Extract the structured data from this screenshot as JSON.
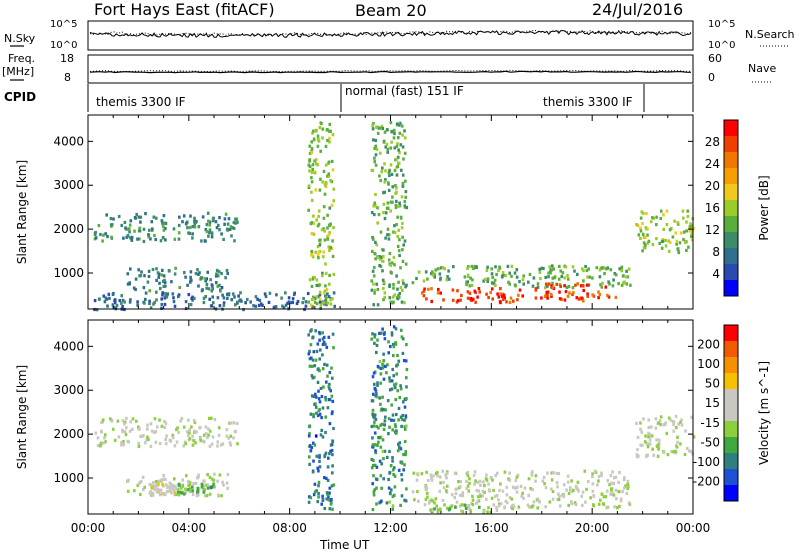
{
  "header": {
    "station": "Fort Hays East (fitACF)",
    "beam": "Beam 20",
    "date": "24/Jul/2016"
  },
  "strip_labels": {
    "nsky": "N.Sky",
    "nsky_ticks": [
      "10^5",
      "10^0"
    ],
    "nsearch": "N.Search",
    "nsearch_ticks": [
      "10^5",
      "10^0"
    ],
    "freq": "Freq.",
    "freq_unit": "[MHz]",
    "freq_ticks": [
      "18",
      "8"
    ],
    "nave": "Nave",
    "nave_ticks": [
      "60",
      "0"
    ],
    "cpid": "CPID"
  },
  "cpid_modes": [
    {
      "label": "themis 3300 IF",
      "start_ut": "00:00",
      "end_ut": "09:45"
    },
    {
      "label": "normal (fast) 151 IF",
      "start_ut": "09:45",
      "end_ut": "21:40"
    },
    {
      "label": "themis 3300 IF",
      "start_ut": "21:40",
      "end_ut": "24:00"
    }
  ],
  "colors": {
    "power_scale": [
      "#0000ff",
      "#2a4ab0",
      "#2e6f8e",
      "#3c8c6a",
      "#5aaf3c",
      "#9ccc2a",
      "#f0c820",
      "#f5a000",
      "#f07800",
      "#f04000",
      "#ff0000"
    ],
    "velocity_scale": [
      "#0000ff",
      "#1e50d2",
      "#2f7f7f",
      "#3fa83f",
      "#8ccf3c",
      "#c8c8c0",
      "#c8c8c0",
      "#f5c000",
      "#f59000",
      "#f05a00",
      "#ff0000"
    ]
  },
  "chart_data": [
    {
      "type": "heatmap",
      "title": "Power",
      "xlabel": "",
      "ylabel": "Slant Range [km]",
      "x_ticks": [
        "00:00",
        "04:00",
        "08:00",
        "12:00",
        "16:00",
        "20:00",
        "00:00"
      ],
      "xlim_hours": [
        0,
        24
      ],
      "y_ticks": [
        "4000",
        "3000",
        "2000",
        "1000"
      ],
      "ylim_km": [
        180,
        4600
      ],
      "colorbar": {
        "label": "Power [dB]",
        "ticks": [
          "28",
          "24",
          "20",
          "16",
          "12",
          "8",
          "4"
        ],
        "range": [
          0,
          30
        ]
      },
      "grid": false,
      "regions": [
        {
          "t": [
            0.2,
            5.9
          ],
          "r": [
            1750,
            2400
          ],
          "value": 9
        },
        {
          "t": [
            1.5,
            5.5
          ],
          "r": [
            620,
            1150
          ],
          "value": 8
        },
        {
          "t": [
            0.2,
            10.0
          ],
          "r": [
            200,
            600
          ],
          "value": 7
        },
        {
          "t": [
            8.7,
            9.7
          ],
          "r": [
            300,
            4500
          ],
          "value": 14
        },
        {
          "t": [
            11.2,
            12.6
          ],
          "r": [
            300,
            4500
          ],
          "value": 12
        },
        {
          "t": [
            12.8,
            21.5
          ],
          "r": [
            700,
            1200
          ],
          "value": 12
        },
        {
          "t": [
            13.2,
            17.3
          ],
          "r": [
            350,
            700
          ],
          "value": 27
        },
        {
          "t": [
            17.6,
            20.9
          ],
          "r": [
            400,
            800
          ],
          "value": 26
        },
        {
          "t": [
            21.7,
            24.0
          ],
          "r": [
            1500,
            2450
          ],
          "value": 14
        }
      ]
    },
    {
      "type": "heatmap",
      "title": "Velocity",
      "xlabel": "Time UT",
      "ylabel": "Slant Range [km]",
      "x_ticks": [
        "00:00",
        "04:00",
        "08:00",
        "12:00",
        "16:00",
        "20:00",
        "00:00"
      ],
      "xlim_hours": [
        0,
        24
      ],
      "y_ticks": [
        "4000",
        "3000",
        "2000",
        "1000"
      ],
      "ylim_km": [
        180,
        4600
      ],
      "colorbar": {
        "label": "Velocity [m s^-1]",
        "ticks": [
          "200",
          "100",
          "50",
          "15",
          "-15",
          "-50",
          "-100",
          "-200"
        ],
        "range": [
          -250,
          250
        ]
      },
      "grid": false,
      "regions": [
        {
          "t": [
            0.2,
            5.9
          ],
          "r": [
            1750,
            2400
          ],
          "value": 0
        },
        {
          "t": [
            1.5,
            5.5
          ],
          "r": [
            620,
            1150
          ],
          "value": 0
        },
        {
          "t": [
            3.5,
            5.0
          ],
          "r": [
            650,
            900
          ],
          "value": -60
        },
        {
          "t": [
            2.5,
            3.5
          ],
          "r": [
            650,
            900
          ],
          "value": 40
        },
        {
          "t": [
            8.7,
            9.7
          ],
          "r": [
            300,
            4500
          ],
          "value": -150
        },
        {
          "t": [
            11.2,
            12.6
          ],
          "r": [
            300,
            4500
          ],
          "value": -120
        },
        {
          "t": [
            12.8,
            21.5
          ],
          "r": [
            350,
            1200
          ],
          "value": 0
        },
        {
          "t": [
            13.5,
            17.0
          ],
          "r": [
            250,
            450
          ],
          "value": -40
        },
        {
          "t": [
            21.7,
            24.0
          ],
          "r": [
            1500,
            2450
          ],
          "value": 0
        }
      ]
    }
  ]
}
